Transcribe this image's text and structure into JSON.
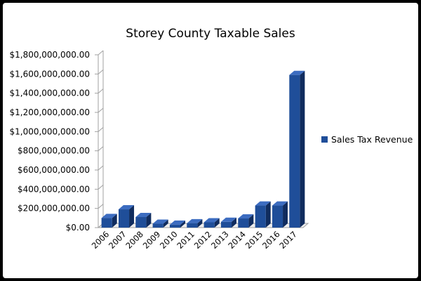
{
  "chart_data": {
    "type": "bar",
    "title": "Storey County Taxable Sales",
    "xlabel": "",
    "ylabel": "",
    "categories": [
      "2006",
      "2007",
      "2008",
      "2009",
      "2010",
      "2011",
      "2012",
      "2013",
      "2014",
      "2015",
      "2016",
      "2017"
    ],
    "series": [
      {
        "name": "Sales Tax Revenue",
        "values": [
          100000000,
          190000000,
          110000000,
          40000000,
          30000000,
          45000000,
          55000000,
          60000000,
          95000000,
          230000000,
          230000000,
          1590000000
        ]
      }
    ],
    "ylim": [
      0,
      1800000000
    ],
    "yticks": [
      0,
      200000000,
      400000000,
      600000000,
      800000000,
      1000000000,
      1200000000,
      1400000000,
      1600000000,
      1800000000
    ],
    "ytick_labels": [
      "$0.00",
      "$200,000,000.00",
      "$400,000,000.00",
      "$600,000,000.00",
      "$800,000,000.00",
      "$1,000,000,000.00",
      "$1,200,000,000.00",
      "$1,400,000,000.00",
      "$1,600,000,000.00",
      "$1,800,000,000.00"
    ],
    "legend_position": "right",
    "grid": false,
    "bar_style": "3d",
    "colors": {
      "bar_front": "#1f4e99",
      "bar_side": "#102c5e",
      "bar_top": "#3c6cc0",
      "axis": "#a0a0a0"
    }
  }
}
